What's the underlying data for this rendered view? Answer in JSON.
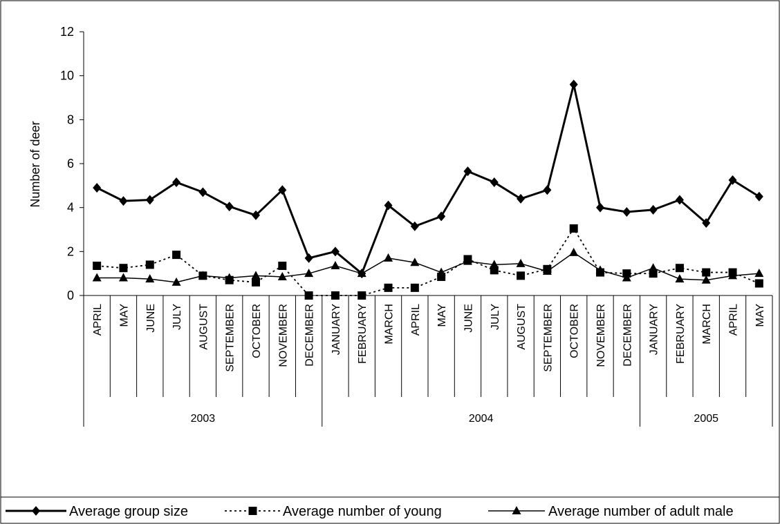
{
  "chart_data": {
    "type": "line",
    "ylabel": "Number of deer",
    "xlabel": "",
    "ylim": [
      0,
      12
    ],
    "yticks": [
      0,
      2,
      4,
      6,
      8,
      10,
      12
    ],
    "categories": [
      "APRIL",
      "MAY",
      "JUNE",
      "JULY",
      "AUGUST",
      "SEPTEMBER",
      "OCTOBER",
      "NOVEMBER",
      "DECEMBER",
      "JANUARY",
      "FEBRUARY",
      "MARCH",
      "APRIL",
      "MAY",
      "JUNE",
      "JULY",
      "AUGUST",
      "SEPTEMBER",
      "OCTOBER",
      "NOVEMBER",
      "DECEMBER",
      "JANUARY",
      "FEBRUARY",
      "MARCH",
      "APRIL",
      "MAY"
    ],
    "years": [
      {
        "label": "2003",
        "start": 0,
        "end": 8
      },
      {
        "label": "2004",
        "start": 9,
        "end": 20
      },
      {
        "label": "2005",
        "start": 21,
        "end": 25
      }
    ],
    "series": [
      {
        "name": "Average group size",
        "marker": "diamond",
        "line": "solid-thick",
        "color": "#000000",
        "values": [
          4.9,
          4.3,
          4.35,
          5.15,
          4.7,
          4.05,
          3.65,
          4.8,
          1.7,
          2.0,
          1.0,
          4.1,
          3.15,
          3.6,
          5.65,
          5.15,
          4.4,
          4.8,
          9.6,
          4.0,
          3.8,
          3.9,
          4.35,
          3.3,
          5.25,
          4.5
        ]
      },
      {
        "name": "Average number of young",
        "marker": "square",
        "line": "dotted",
        "color": "#000000",
        "values": [
          1.35,
          1.25,
          1.4,
          1.85,
          0.9,
          0.7,
          0.6,
          1.35,
          0.0,
          0.0,
          0.0,
          0.35,
          0.35,
          0.85,
          1.65,
          1.15,
          0.9,
          1.2,
          3.05,
          1.05,
          1.0,
          1.0,
          1.25,
          1.05,
          1.05,
          0.55
        ]
      },
      {
        "name": "Average number of adult male",
        "marker": "triangle",
        "line": "solid",
        "color": "#000000",
        "values": [
          0.8,
          0.8,
          0.75,
          0.6,
          0.9,
          0.8,
          0.9,
          0.85,
          1.0,
          1.35,
          1.0,
          1.7,
          1.5,
          1.05,
          1.55,
          1.4,
          1.45,
          1.1,
          1.95,
          1.15,
          0.8,
          1.25,
          0.75,
          0.7,
          0.9,
          1.0
        ]
      }
    ],
    "grid": false,
    "legend_position": "bottom"
  }
}
